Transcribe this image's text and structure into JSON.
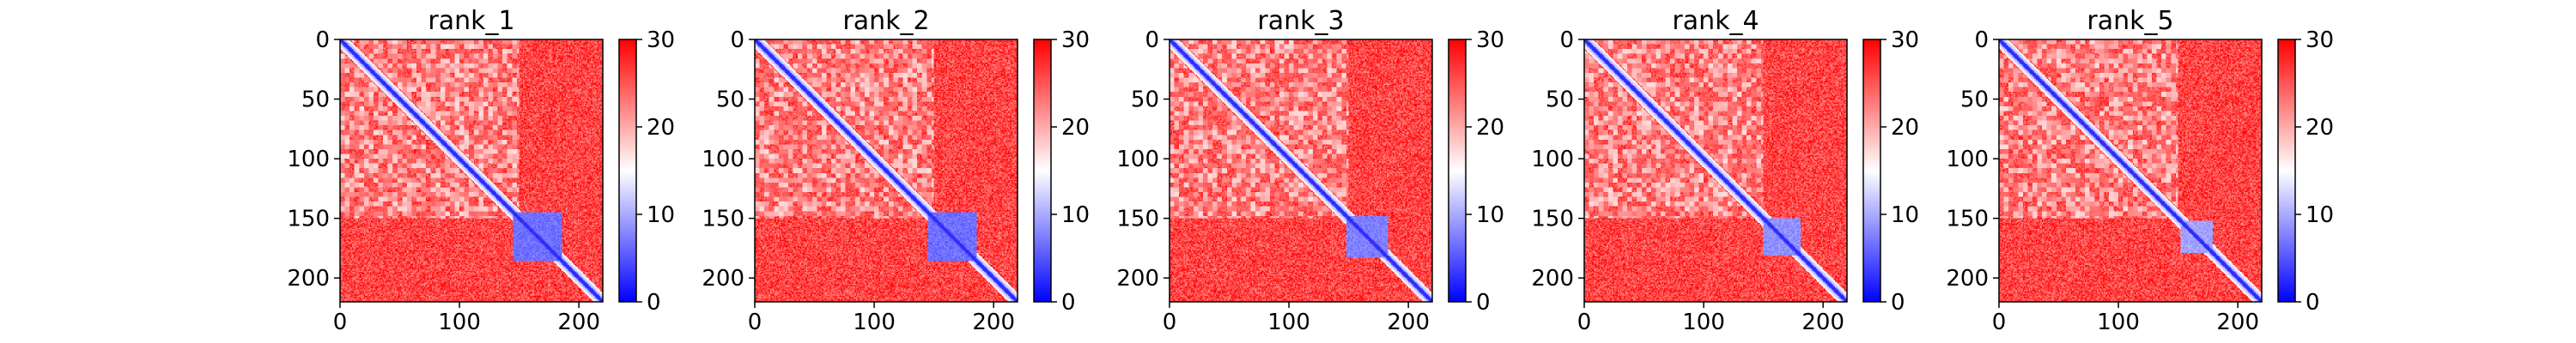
{
  "chart_data": [
    {
      "type": "heatmap",
      "title": "rank_1",
      "xlim": [
        0,
        220
      ],
      "ylim": [
        220,
        0
      ],
      "x_ticks": [
        "0",
        "100",
        "200"
      ],
      "y_ticks": [
        "0",
        "50",
        "100",
        "150",
        "200"
      ],
      "colorbar": {
        "range": [
          0,
          30
        ],
        "ticks": [
          "0",
          "10",
          "20",
          "30"
        ],
        "colors": [
          "#0000ff",
          "#ffffff",
          "#ff0000"
        ]
      },
      "structure": {
        "diagonal_value": 2,
        "background_value": 28,
        "domain_start": 145,
        "domain_end": 185,
        "domain_value": 5
      }
    },
    {
      "type": "heatmap",
      "title": "rank_2",
      "xlim": [
        0,
        220
      ],
      "ylim": [
        220,
        0
      ],
      "x_ticks": [
        "0",
        "100",
        "200"
      ],
      "y_ticks": [
        "0",
        "50",
        "100",
        "150",
        "200"
      ],
      "colorbar": {
        "range": [
          0,
          30
        ],
        "ticks": [
          "0",
          "10",
          "20",
          "30"
        ],
        "colors": [
          "#0000ff",
          "#ffffff",
          "#ff0000"
        ]
      },
      "structure": {
        "diagonal_value": 2,
        "background_value": 28,
        "domain_start": 145,
        "domain_end": 185,
        "domain_value": 5
      }
    },
    {
      "type": "heatmap",
      "title": "rank_3",
      "xlim": [
        0,
        220
      ],
      "ylim": [
        220,
        0
      ],
      "x_ticks": [
        "0",
        "100",
        "200"
      ],
      "y_ticks": [
        "0",
        "50",
        "100",
        "150",
        "200"
      ],
      "colorbar": {
        "range": [
          0,
          30
        ],
        "ticks": [
          "0",
          "10",
          "20",
          "30"
        ],
        "colors": [
          "#0000ff",
          "#ffffff",
          "#ff0000"
        ]
      },
      "structure": {
        "diagonal_value": 2,
        "background_value": 28,
        "domain_start": 148,
        "domain_end": 182,
        "domain_value": 6
      }
    },
    {
      "type": "heatmap",
      "title": "rank_4",
      "xlim": [
        0,
        220
      ],
      "ylim": [
        220,
        0
      ],
      "x_ticks": [
        "0",
        "100",
        "200"
      ],
      "y_ticks": [
        "0",
        "50",
        "100",
        "150",
        "200"
      ],
      "colorbar": {
        "range": [
          0,
          30
        ],
        "ticks": [
          "0",
          "10",
          "20",
          "30"
        ],
        "colors": [
          "#0000ff",
          "#ffffff",
          "#ff0000"
        ]
      },
      "structure": {
        "diagonal_value": 2,
        "background_value": 28,
        "domain_start": 150,
        "domain_end": 180,
        "domain_value": 7
      }
    },
    {
      "type": "heatmap",
      "title": "rank_5",
      "xlim": [
        0,
        220
      ],
      "ylim": [
        220,
        0
      ],
      "x_ticks": [
        "0",
        "100",
        "200"
      ],
      "y_ticks": [
        "0",
        "50",
        "100",
        "150",
        "200"
      ],
      "colorbar": {
        "range": [
          0,
          30
        ],
        "ticks": [
          "0",
          "10",
          "20",
          "30"
        ],
        "colors": [
          "#0000ff",
          "#ffffff",
          "#ff0000"
        ]
      },
      "structure": {
        "diagonal_value": 2,
        "background_value": 28,
        "domain_start": 152,
        "domain_end": 178,
        "domain_value": 8
      }
    }
  ]
}
